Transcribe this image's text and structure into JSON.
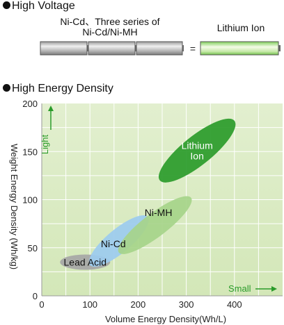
{
  "voltage": {
    "heading": "High Voltage",
    "left_label_line1": "Ni-Cd、Three series of",
    "left_label_line2": "Ni-Cd/Ni-MH",
    "equals": "=",
    "right_label": "Lithium Ion",
    "cell_count": 3
  },
  "energy": {
    "heading": "High Energy Density"
  },
  "chart_data": {
    "type": "scatter",
    "title": "High Energy Density",
    "xlabel": "Volume Energy Density(Wh/L)",
    "ylabel": "Weight Energy Density (Wh/kg)",
    "xlim": [
      0,
      500
    ],
    "ylim": [
      0,
      200
    ],
    "xticks": [
      0,
      100,
      200,
      300,
      400
    ],
    "yticks": [
      0,
      50,
      100,
      150,
      200
    ],
    "grid": true,
    "annotations": {
      "light": "Light",
      "small": "Small"
    },
    "series": [
      {
        "name": "Lead Acid",
        "color": "#a6a6a6",
        "x_range": [
          40,
          140
        ],
        "y_range": [
          28,
          42
        ],
        "label_lines": [
          "Lead Acid"
        ]
      },
      {
        "name": "Ni-Cd",
        "color": "#9ccbef",
        "x_range": [
          100,
          220
        ],
        "y_range": [
          32,
          82
        ],
        "label_lines": [
          "Ni-Cd"
        ]
      },
      {
        "name": "Ni-MH",
        "color": "#a6d48a",
        "x_range": [
          160,
          310
        ],
        "y_range": [
          45,
          102
        ],
        "label_lines": [
          "Ni-MH"
        ]
      },
      {
        "name": "Lithium Ion",
        "color": "#2a9b2a",
        "x_range": [
          245,
          400
        ],
        "y_range": [
          120,
          182
        ],
        "label_lines": [
          "Lithium",
          "Ion"
        ]
      }
    ]
  }
}
